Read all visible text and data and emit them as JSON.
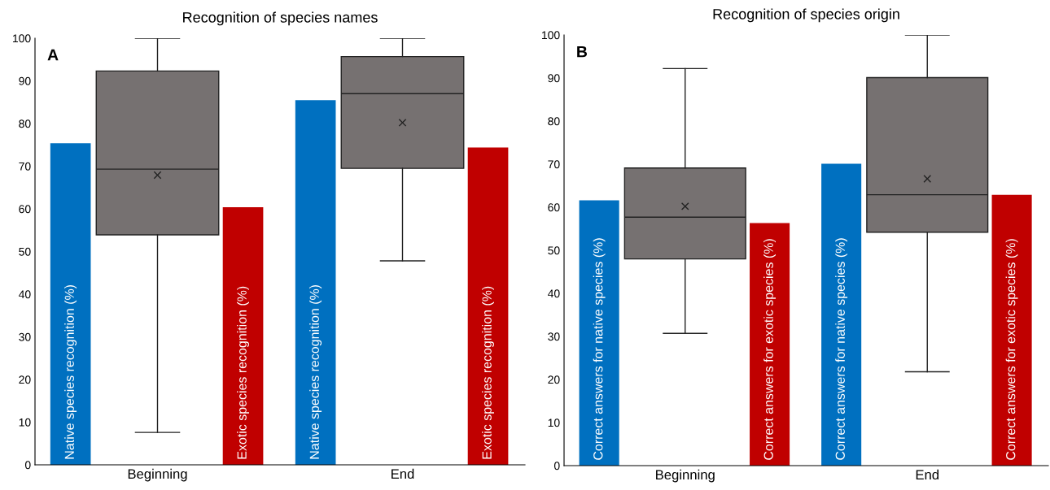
{
  "chart_data": [
    {
      "type": "bar",
      "title": "Recognition of species names",
      "categories": [
        "Beginning",
        "End"
      ],
      "ylim": [
        0,
        100
      ],
      "yticks": [
        0,
        10,
        20,
        30,
        40,
        50,
        60,
        70,
        80,
        90,
        100
      ],
      "grid": false,
      "legend": false,
      "annotations": [
        "A"
      ],
      "series": [
        {
          "name": "Native species recognition (%)",
          "color": "#0070c0",
          "values": [
            75.4,
            85.5
          ]
        },
        {
          "type": "box",
          "color": "#767171",
          "boxes": [
            {
              "low": 7.6,
              "q1": 53.9,
              "median": 69.3,
              "q3": 92.3,
              "high": 100,
              "mean": 67.9
            },
            {
              "low": 47.8,
              "q1": 69.5,
              "median": 87.0,
              "q3": 95.7,
              "high": 100,
              "mean": 80.2
            }
          ]
        },
        {
          "name": "Exotic species recognition (%)",
          "color": "#c00000",
          "values": [
            60.4,
            74.4
          ]
        }
      ]
    },
    {
      "type": "bar",
      "title": "Recognition of species origin",
      "categories": [
        "Beginning",
        "End"
      ],
      "ylim": [
        0,
        100
      ],
      "yticks": [
        0,
        10,
        20,
        30,
        40,
        50,
        60,
        70,
        80,
        90,
        100
      ],
      "grid": false,
      "legend": false,
      "annotations": [
        "B"
      ],
      "series": [
        {
          "name": "Correct answers for native species (%)",
          "color": "#0070c0",
          "values": [
            61.6,
            70.1
          ]
        },
        {
          "type": "box",
          "color": "#767171",
          "boxes": [
            {
              "low": 30.7,
              "q1": 48.0,
              "median": 57.7,
              "q3": 69.1,
              "high": 92.2,
              "mean": 60.2
            },
            {
              "low": 21.8,
              "q1": 54.2,
              "median": 62.9,
              "q3": 90.1,
              "high": 100,
              "mean": 66.6
            }
          ]
        },
        {
          "name": "Correct answers for exotic species (%)",
          "color": "#c00000",
          "values": [
            56.3,
            62.9
          ]
        }
      ]
    }
  ]
}
